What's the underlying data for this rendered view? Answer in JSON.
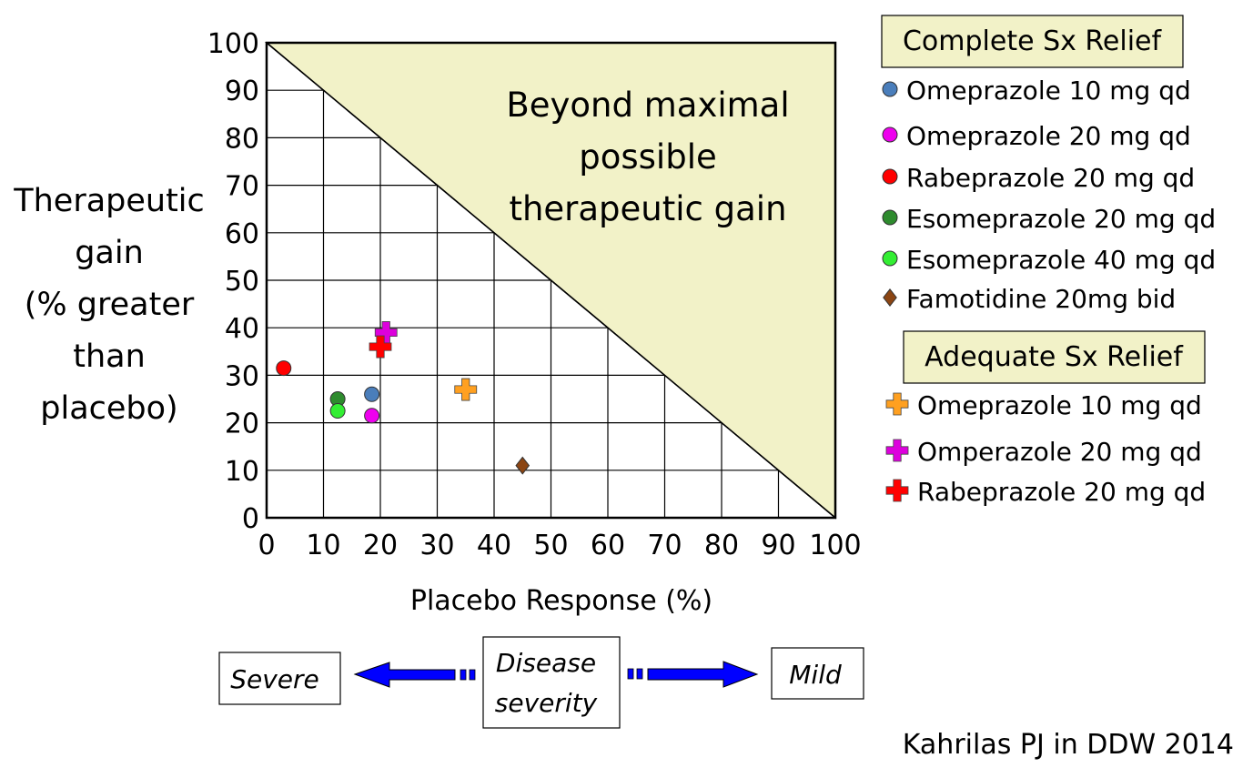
{
  "chart_data": {
    "type": "scatter",
    "xlabel": "Placebo Response (%)",
    "ylabel_lines": [
      "Therapeutic",
      "gain",
      "(% greater",
      "than",
      "placebo)"
    ],
    "xlim": [
      0,
      100
    ],
    "ylim": [
      0,
      100
    ],
    "x_ticks": [
      "0",
      "10",
      "20",
      "30",
      "40",
      "50",
      "60",
      "70",
      "80",
      "90",
      "100"
    ],
    "y_ticks": [
      "0",
      "10",
      "20",
      "30",
      "40",
      "50",
      "60",
      "70",
      "80",
      "90",
      "100"
    ],
    "grid": true,
    "region_label_lines": [
      "Beyond maximal",
      "possible",
      "therapeutic gain"
    ],
    "region_color": "#f2f2c8",
    "groups": [
      {
        "title": "Complete Sx Relief",
        "series": [
          {
            "name": "Omeprazole 10 mg qd",
            "marker": "circle",
            "color": "#4a7ebb",
            "points": [
              [
                18.5,
                26
              ]
            ]
          },
          {
            "name": "Omeprazole 20 mg qd",
            "marker": "circle",
            "color": "#ee00ee",
            "points": [
              [
                18.5,
                21.5
              ]
            ]
          },
          {
            "name": "Rabeprazole 20 mg qd",
            "marker": "circle",
            "color": "#ff0000",
            "points": [
              [
                3,
                31.5
              ]
            ]
          },
          {
            "name": "Esomeprazole 20 mg qd",
            "marker": "circle",
            "color": "#2e8b2e",
            "points": [
              [
                12.5,
                25
              ]
            ]
          },
          {
            "name": "Esomeprazole 40 mg qd",
            "marker": "circle",
            "color": "#33ee33",
            "points": [
              [
                12.5,
                22.5
              ]
            ]
          },
          {
            "name": "Famotidine 20mg bid",
            "marker": "diamond",
            "color": "#8b4513",
            "points": [
              [
                45,
                11
              ]
            ]
          }
        ]
      },
      {
        "title": "Adequate Sx Relief",
        "series": [
          {
            "name": "Omeprazole 10 mg qd",
            "marker": "cross",
            "color": "#ffa020",
            "points": [
              [
                35,
                27
              ]
            ]
          },
          {
            "name": "Omperazole 20 mg qd",
            "marker": "cross",
            "color": "#dd00dd",
            "points": [
              [
                21,
                39
              ]
            ]
          },
          {
            "name": "Rabeprazole 20 mg qd",
            "marker": "cross",
            "color": "#ff0000",
            "points": [
              [
                20,
                36
              ]
            ]
          }
        ]
      }
    ]
  },
  "severity": {
    "center": "Disease severity",
    "center_lines": [
      "Disease",
      "severity"
    ],
    "left": "Severe",
    "right": "Mild",
    "arrow_color": "#0000ff"
  },
  "citation": "Kahrilas PJ in DDW 2014"
}
